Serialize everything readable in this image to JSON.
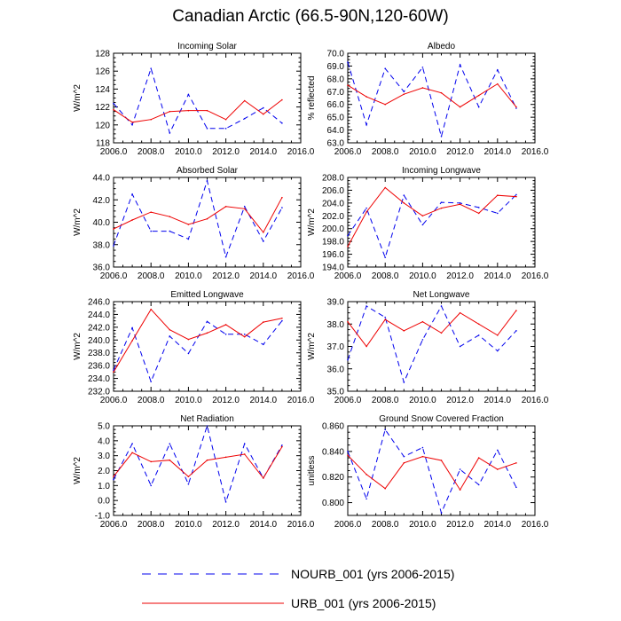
{
  "title": "Canadian Arctic (66.5-90N,120-60W)",
  "colors": {
    "nourb": "#0000ee",
    "urb": "#ee0000",
    "axis": "#000000"
  },
  "legend": [
    {
      "key": "nourb",
      "label": "NOURB_001 (yrs 2006-2015)",
      "style": "dashed"
    },
    {
      "key": "urb",
      "label": "URB_001 (yrs 2006-2015)",
      "style": "solid"
    }
  ],
  "chart_data": [
    {
      "type": "line",
      "title": "Incoming Solar",
      "ylabel": "W/m^2",
      "xlim": [
        2006,
        2016
      ],
      "xticks": [
        2006,
        2008,
        2010,
        2012,
        2014,
        2016
      ],
      "xtick_labels": [
        "2006.0",
        "2008.0",
        "2010.0",
        "2012.0",
        "2014.0",
        "2016.0"
      ],
      "ylim": [
        118,
        128
      ],
      "yticks": [
        118,
        120,
        122,
        124,
        126,
        128
      ],
      "ytick_labels": [
        "118",
        "120",
        "122",
        "124",
        "126",
        "128"
      ],
      "x": [
        2006,
        2007,
        2008,
        2009,
        2010,
        2011,
        2012,
        2013,
        2014,
        2015
      ],
      "series": [
        {
          "name": "NOURB_001",
          "key": "nourb",
          "values": [
            122.4,
            120.0,
            126.3,
            119.1,
            123.4,
            119.6,
            119.6,
            120.7,
            121.9,
            120.2
          ]
        },
        {
          "name": "URB_001",
          "key": "urb",
          "values": [
            121.7,
            120.3,
            120.6,
            121.5,
            121.6,
            121.6,
            120.6,
            122.7,
            121.2,
            122.8
          ]
        }
      ]
    },
    {
      "type": "line",
      "title": "Albedo",
      "ylabel": "% reflected",
      "xlim": [
        2006,
        2016
      ],
      "xticks": [
        2006,
        2008,
        2010,
        2012,
        2014,
        2016
      ],
      "xtick_labels": [
        "2006.0",
        "2008.0",
        "2010.0",
        "2012.0",
        "2014.0",
        "2016.0"
      ],
      "ylim": [
        63,
        70
      ],
      "yticks": [
        63,
        64,
        65,
        66,
        67,
        68,
        69,
        70
      ],
      "ytick_labels": [
        "63.0",
        "64.0",
        "65.0",
        "66.0",
        "67.0",
        "68.0",
        "69.0",
        "70.0"
      ],
      "x": [
        2006,
        2007,
        2008,
        2009,
        2010,
        2011,
        2012,
        2013,
        2014,
        2015
      ],
      "series": [
        {
          "name": "NOURB_001",
          "key": "nourb",
          "values": [
            69.3,
            64.4,
            68.8,
            67.0,
            68.9,
            63.5,
            69.1,
            65.8,
            68.7,
            65.7
          ]
        },
        {
          "name": "URB_001",
          "key": "urb",
          "values": [
            67.5,
            66.6,
            66.0,
            66.8,
            67.3,
            66.9,
            65.8,
            66.7,
            67.6,
            65.8
          ]
        }
      ]
    },
    {
      "type": "line",
      "title": "Absorbed Solar",
      "ylabel": "W/m^2",
      "xlim": [
        2006,
        2016
      ],
      "xticks": [
        2006,
        2008,
        2010,
        2012,
        2014,
        2016
      ],
      "xtick_labels": [
        "2006.0",
        "2008.0",
        "2010.0",
        "2012.0",
        "2014.0",
        "2016.0"
      ],
      "ylim": [
        36,
        44
      ],
      "yticks": [
        36,
        38,
        40,
        42,
        44
      ],
      "ytick_labels": [
        "36.0",
        "38.0",
        "40.0",
        "42.0",
        "44.0"
      ],
      "x": [
        2006,
        2007,
        2008,
        2009,
        2010,
        2011,
        2012,
        2013,
        2014,
        2015
      ],
      "series": [
        {
          "name": "NOURB_001",
          "key": "nourb",
          "values": [
            37.9,
            42.5,
            39.2,
            39.2,
            38.5,
            43.7,
            36.9,
            41.4,
            38.3,
            41.3
          ]
        },
        {
          "name": "URB_001",
          "key": "urb",
          "values": [
            39.4,
            40.2,
            40.9,
            40.5,
            39.8,
            40.3,
            41.4,
            41.2,
            39.1,
            42.2
          ]
        }
      ]
    },
    {
      "type": "line",
      "title": "Incoming Longwave",
      "ylabel": "W/m^2",
      "xlim": [
        2006,
        2016
      ],
      "xticks": [
        2006,
        2008,
        2010,
        2012,
        2014,
        2016
      ],
      "xtick_labels": [
        "2006.0",
        "2008.0",
        "2010.0",
        "2012.0",
        "2014.0",
        "2016.0"
      ],
      "ylim": [
        194,
        208
      ],
      "yticks": [
        194,
        196,
        198,
        200,
        202,
        204,
        206,
        208
      ],
      "ytick_labels": [
        "194.0",
        "196.0",
        "198.0",
        "200.0",
        "202.0",
        "204.0",
        "206.0",
        "208.0"
      ],
      "x": [
        2006,
        2007,
        2008,
        2009,
        2010,
        2011,
        2012,
        2013,
        2014,
        2015
      ],
      "series": [
        {
          "name": "NOURB_001",
          "key": "nourb",
          "values": [
            198.9,
            203.2,
            195.5,
            205.2,
            200.6,
            204.1,
            204.0,
            203.3,
            202.4,
            205.3
          ]
        },
        {
          "name": "URB_001",
          "key": "urb",
          "values": [
            197.2,
            202.6,
            206.4,
            204.0,
            202.0,
            203.2,
            203.8,
            202.4,
            205.2,
            205.0
          ]
        }
      ]
    },
    {
      "type": "line",
      "title": "Emitted Longwave",
      "ylabel": "W/m^2",
      "xlim": [
        2006,
        2016
      ],
      "xticks": [
        2006,
        2008,
        2010,
        2012,
        2014,
        2016
      ],
      "xtick_labels": [
        "2006.0",
        "2008.0",
        "2010.0",
        "2012.0",
        "2014.0",
        "2016.0"
      ],
      "ylim": [
        232,
        246
      ],
      "yticks": [
        232,
        234,
        236,
        238,
        240,
        242,
        244,
        246
      ],
      "ytick_labels": [
        "232.0",
        "234.0",
        "236.0",
        "238.0",
        "240.0",
        "242.0",
        "244.0",
        "246.0"
      ],
      "x": [
        2006,
        2007,
        2008,
        2009,
        2010,
        2011,
        2012,
        2013,
        2014,
        2015
      ],
      "series": [
        {
          "name": "NOURB_001",
          "key": "nourb",
          "values": [
            235.3,
            241.9,
            233.5,
            240.6,
            237.9,
            242.9,
            240.9,
            240.9,
            239.3,
            243.0
          ]
        },
        {
          "name": "URB_001",
          "key": "urb",
          "values": [
            235.0,
            239.9,
            244.8,
            241.6,
            240.1,
            241.1,
            242.4,
            240.5,
            242.8,
            243.4
          ]
        }
      ]
    },
    {
      "type": "line",
      "title": "Net Longwave",
      "ylabel": "W/m^2",
      "xlim": [
        2006,
        2016
      ],
      "xticks": [
        2006,
        2008,
        2010,
        2012,
        2014,
        2016
      ],
      "xtick_labels": [
        "2006.0",
        "2008.0",
        "2010.0",
        "2012.0",
        "2014.0",
        "2016.0"
      ],
      "ylim": [
        35,
        39
      ],
      "yticks": [
        35,
        36,
        37,
        38,
        39
      ],
      "ytick_labels": [
        "35.0",
        "36.0",
        "37.0",
        "38.0",
        "39.0"
      ],
      "x": [
        2006,
        2007,
        2008,
        2009,
        2010,
        2011,
        2012,
        2013,
        2014,
        2015
      ],
      "series": [
        {
          "name": "NOURB_001",
          "key": "nourb",
          "values": [
            36.4,
            38.8,
            38.3,
            35.4,
            37.3,
            38.8,
            37.0,
            37.5,
            36.8,
            37.7
          ]
        },
        {
          "name": "URB_001",
          "key": "urb",
          "values": [
            38.1,
            37.0,
            38.2,
            37.7,
            38.1,
            37.6,
            38.5,
            38.0,
            37.5,
            38.6
          ]
        }
      ]
    },
    {
      "type": "line",
      "title": "Net Radiation",
      "ylabel": "W/m^2",
      "xlim": [
        2006,
        2016
      ],
      "xticks": [
        2006,
        2008,
        2010,
        2012,
        2014,
        2016
      ],
      "xtick_labels": [
        "2006.0",
        "2008.0",
        "2010.0",
        "2012.0",
        "2014.0",
        "2016.0"
      ],
      "ylim": [
        -1,
        5
      ],
      "yticks": [
        -1,
        0,
        1,
        2,
        3,
        4,
        5
      ],
      "ytick_labels": [
        "-1.0",
        "0.0",
        "1.0",
        "2.0",
        "3.0",
        "4.0",
        "5.0"
      ],
      "x": [
        2006,
        2007,
        2008,
        2009,
        2010,
        2011,
        2012,
        2013,
        2014,
        2015
      ],
      "series": [
        {
          "name": "NOURB_001",
          "key": "nourb",
          "values": [
            1.4,
            3.8,
            1.0,
            3.8,
            1.1,
            5.0,
            -0.1,
            3.8,
            1.5,
            3.7
          ]
        },
        {
          "name": "URB_001",
          "key": "urb",
          "values": [
            1.6,
            3.2,
            2.6,
            2.7,
            1.6,
            2.7,
            2.9,
            3.1,
            1.5,
            3.6
          ]
        }
      ]
    },
    {
      "type": "line",
      "title": "Ground Snow Covered Fraction",
      "ylabel": "unitless",
      "xlim": [
        2006,
        2016
      ],
      "xticks": [
        2006,
        2008,
        2010,
        2012,
        2014,
        2016
      ],
      "xtick_labels": [
        "2006.0",
        "2008.0",
        "2010.0",
        "2012.0",
        "2014.0",
        "2016.0"
      ],
      "ylim": [
        0.79,
        0.86
      ],
      "yticks": [
        0.8,
        0.82,
        0.84,
        0.86
      ],
      "ytick_labels": [
        "0.800",
        "0.820",
        "0.840",
        "0.860"
      ],
      "x": [
        2006,
        2007,
        2008,
        2009,
        2010,
        2011,
        2012,
        2013,
        2014,
        2015
      ],
      "series": [
        {
          "name": "NOURB_001",
          "key": "nourb",
          "values": [
            0.84,
            0.803,
            0.857,
            0.836,
            0.843,
            0.792,
            0.826,
            0.814,
            0.841,
            0.812
          ]
        },
        {
          "name": "URB_001",
          "key": "urb",
          "values": [
            0.837,
            0.822,
            0.811,
            0.831,
            0.836,
            0.833,
            0.81,
            0.835,
            0.826,
            0.831
          ]
        }
      ]
    }
  ]
}
